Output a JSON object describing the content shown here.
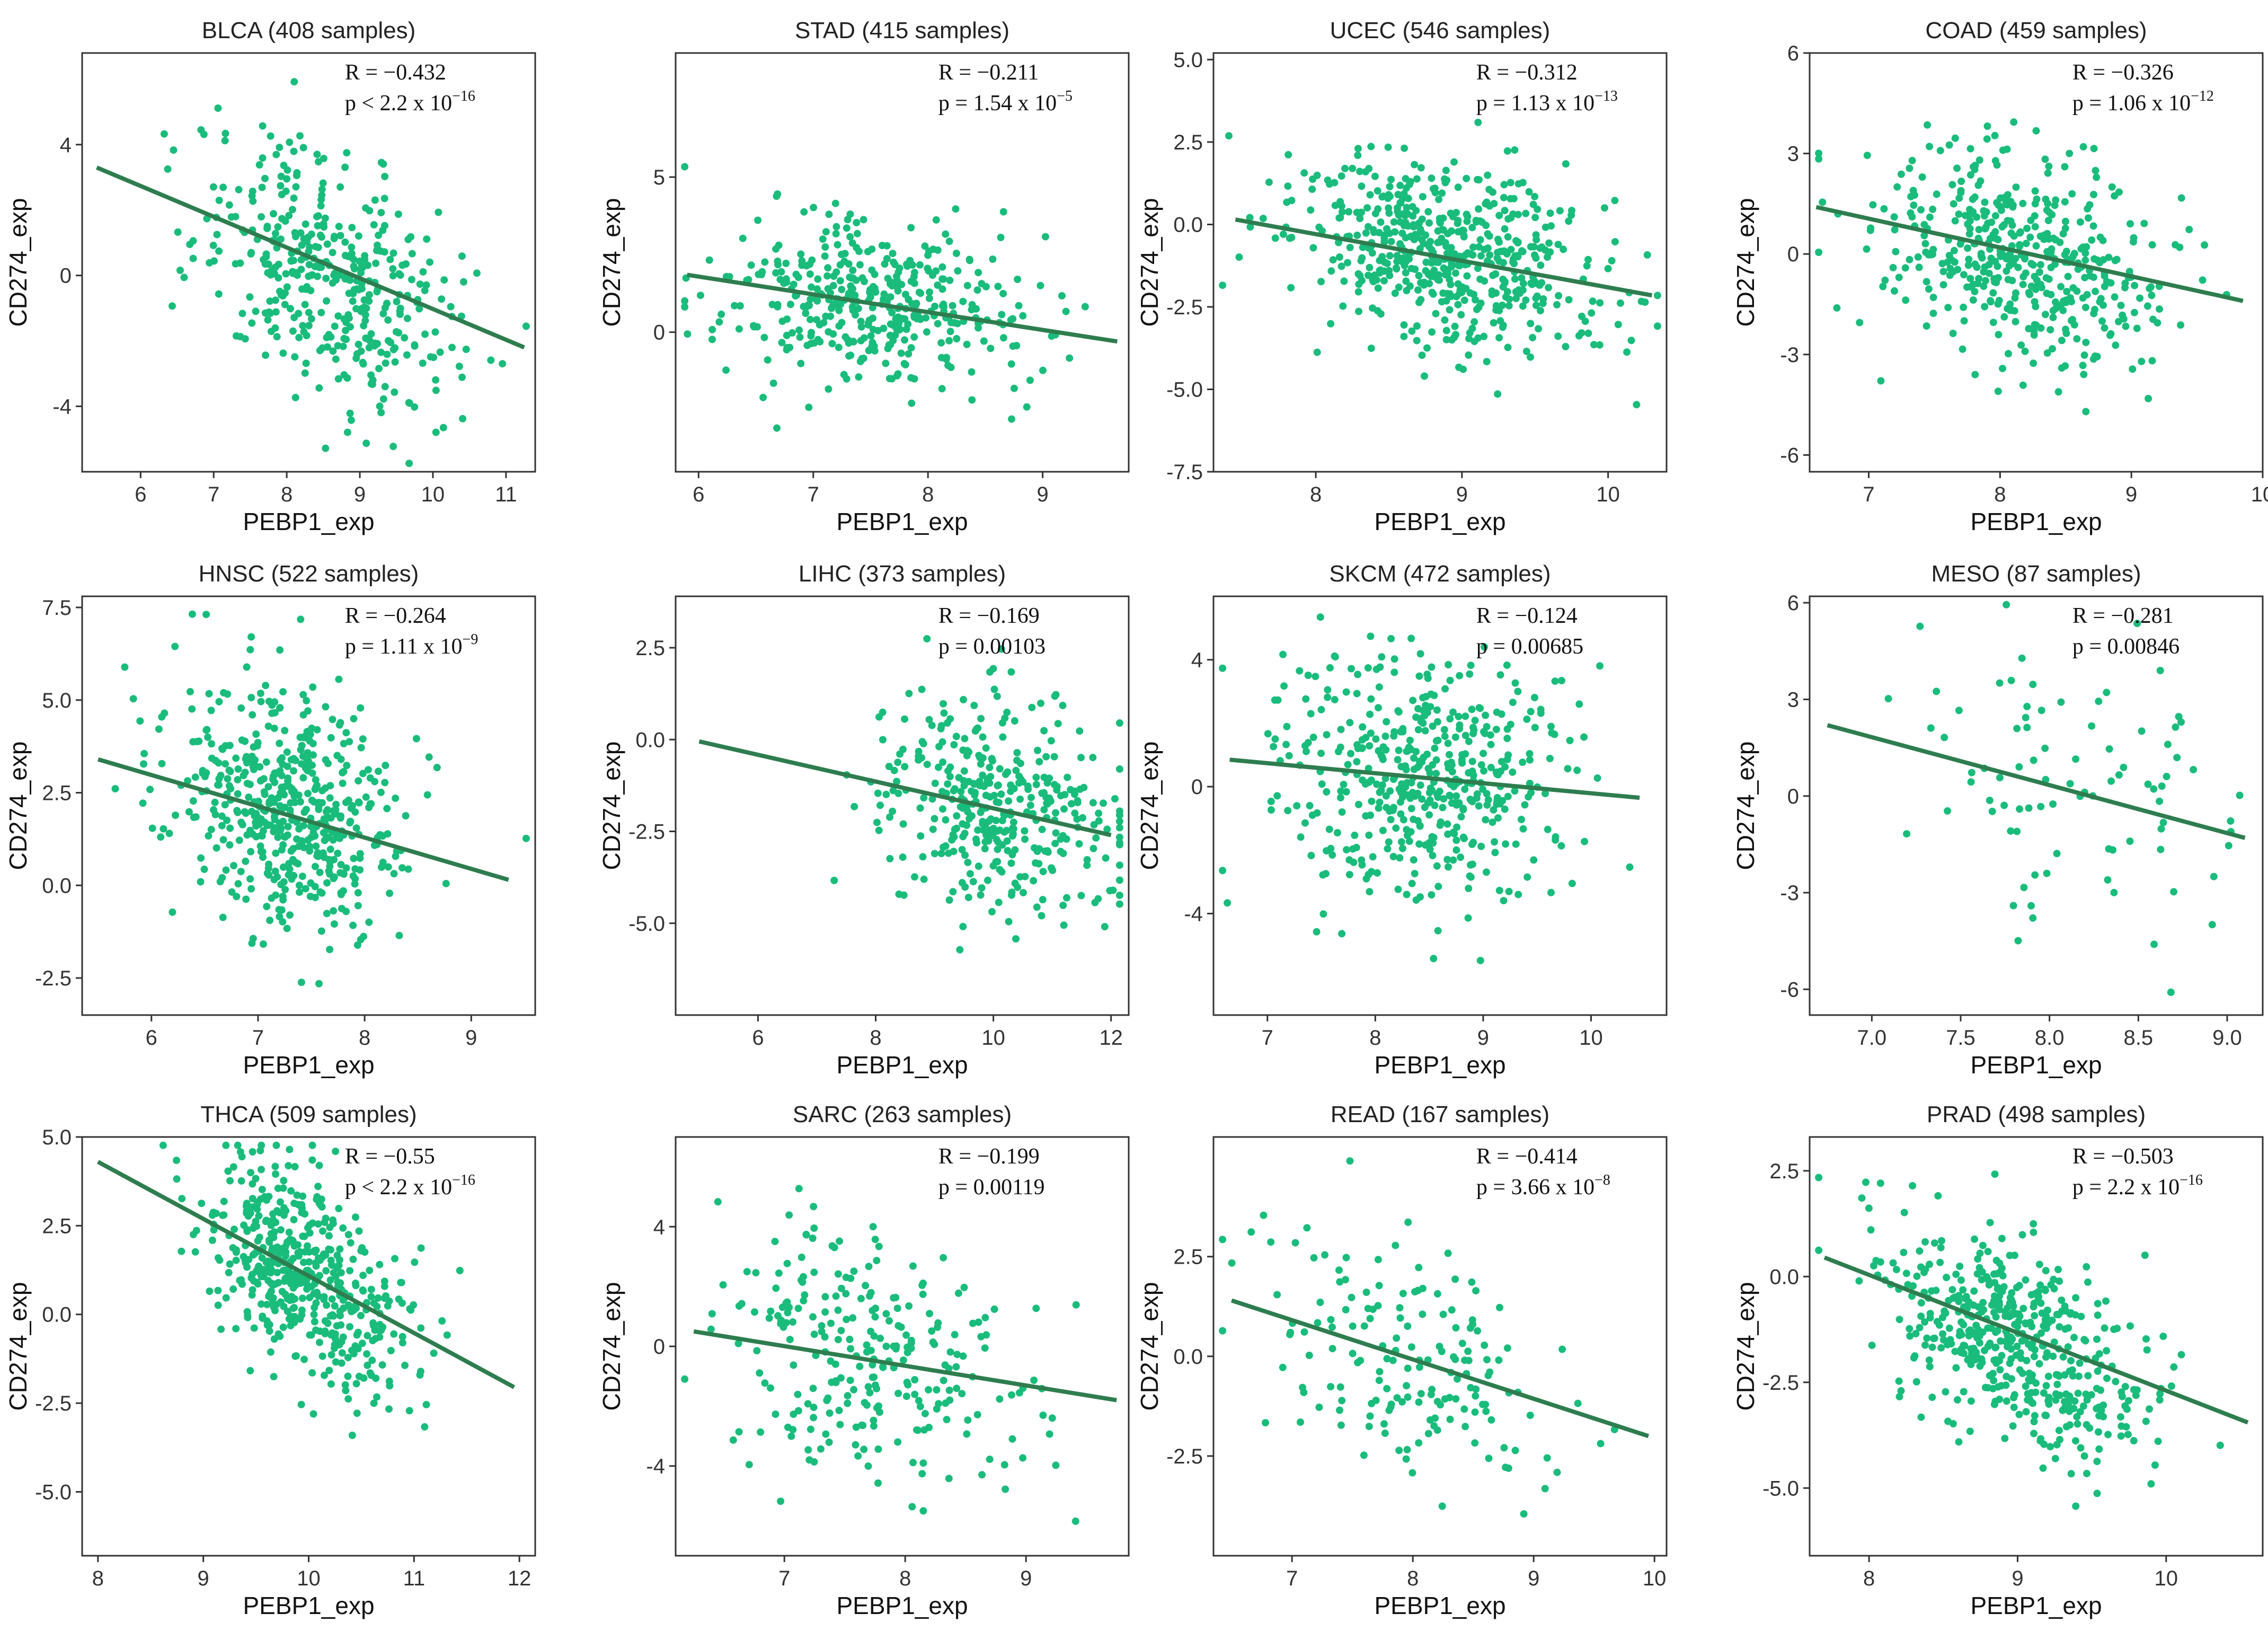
{
  "figure": {
    "x_axis_label": "PEBP1_exp",
    "y_axis_label": "CD274_exp"
  },
  "colors": {
    "points": "#1abc7c",
    "fit_line": "#2e7d4f",
    "frame": "#333333"
  },
  "chart_data": [
    {
      "type": "scatter",
      "title": "BLCA (408 samples)",
      "cancer": "BLCA",
      "n_samples": 408,
      "xlabel": "PEBP1_exp",
      "ylabel": "CD274_exp",
      "xlim": [
        5.2,
        11.4
      ],
      "ylim": [
        -6.0,
        6.8
      ],
      "xticks": [
        6,
        7,
        8,
        9,
        10,
        11
      ],
      "yticks": [
        -4,
        0,
        4
      ],
      "r_label": "R = −0.432",
      "p_label": "p < 2.2 x 10",
      "p_exp": "−16",
      "fit": {
        "x": [
          5.4,
          11.25
        ],
        "y": [
          3.3,
          -2.2
        ]
      },
      "cloud": {
        "mx": 8.6,
        "sx": 0.9,
        "my": 0.0,
        "sy": 2.0,
        "rho": -0.43,
        "n": 408
      }
    },
    {
      "type": "scatter",
      "title": "STAD (415 samples)",
      "cancer": "STAD",
      "n_samples": 415,
      "xlabel": "PEBP1_exp",
      "ylabel": "CD274_exp",
      "xlim": [
        5.8,
        9.75
      ],
      "ylim": [
        -4.5,
        9.0
      ],
      "xticks": [
        6,
        7,
        8,
        9
      ],
      "yticks": [
        0,
        5
      ],
      "r_label": "R = −0.211",
      "p_label": "p = 1.54 x 10",
      "p_exp": "−5",
      "fit": {
        "x": [
          5.9,
          9.65
        ],
        "y": [
          1.85,
          -0.3
        ]
      },
      "cloud": {
        "mx": 7.5,
        "sx": 0.65,
        "my": 0.9,
        "sy": 1.4,
        "rho": -0.21,
        "n": 415
      }
    },
    {
      "type": "scatter",
      "title": "UCEC (546 samples)",
      "cancer": "UCEC",
      "n_samples": 546,
      "xlabel": "PEBP1_exp",
      "ylabel": "CD274_exp",
      "xlim": [
        7.3,
        10.4
      ],
      "ylim": [
        -7.5,
        5.2
      ],
      "xticks": [
        8,
        9,
        10
      ],
      "yticks": [
        -7.5,
        -5.0,
        -2.5,
        0.0,
        2.5,
        5.0
      ],
      "r_label": "R = −0.312",
      "p_label": "p = 1.13 x 10",
      "p_exp": "−13",
      "fit": {
        "x": [
          7.45,
          10.3
        ],
        "y": [
          0.15,
          -2.15
        ]
      },
      "cloud": {
        "mx": 8.9,
        "sx": 0.55,
        "my": -1.0,
        "sy": 1.5,
        "rho": -0.31,
        "n": 546
      }
    },
    {
      "type": "scatter",
      "title": "COAD (459 samples)",
      "cancer": "COAD",
      "n_samples": 459,
      "xlabel": "PEBP1_exp",
      "ylabel": "CD274_exp",
      "xlim": [
        6.55,
        10.0
      ],
      "ylim": [
        -6.5,
        6.0
      ],
      "xticks": [
        7,
        8,
        9,
        10
      ],
      "yticks": [
        -6,
        -3,
        0,
        3,
        6
      ],
      "r_label": "R = −0.326",
      "p_label": "p = 1.06 x 10",
      "p_exp": "−12",
      "fit": {
        "x": [
          6.6,
          9.85
        ],
        "y": [
          1.4,
          -1.4
        ]
      },
      "cloud": {
        "mx": 8.2,
        "sx": 0.55,
        "my": 0.0,
        "sy": 1.6,
        "rho": -0.33,
        "n": 459
      }
    },
    {
      "type": "scatter",
      "title": "HNSC (522 samples)",
      "cancer": "HNSC",
      "n_samples": 522,
      "xlabel": "PEBP1_exp",
      "ylabel": "CD274_exp",
      "xlim": [
        5.35,
        9.6
      ],
      "ylim": [
        -3.5,
        7.8
      ],
      "xticks": [
        6,
        7,
        8,
        9
      ],
      "yticks": [
        -2.5,
        0.0,
        2.5,
        5.0,
        7.5
      ],
      "r_label": "R = −0.264",
      "p_label": "p = 1.11 x 10",
      "p_exp": "−9",
      "fit": {
        "x": [
          5.5,
          9.35
        ],
        "y": [
          3.4,
          0.15
        ]
      },
      "cloud": {
        "mx": 7.3,
        "sx": 0.55,
        "my": 2.0,
        "sy": 1.6,
        "rho": -0.26,
        "n": 522
      }
    },
    {
      "type": "scatter",
      "title": "LIHC (373 samples)",
      "cancer": "LIHC",
      "n_samples": 373,
      "xlabel": "PEBP1_exp",
      "ylabel": "CD274_exp",
      "xlim": [
        4.6,
        12.3
      ],
      "ylim": [
        -7.5,
        3.9
      ],
      "xticks": [
        6,
        8,
        10,
        12
      ],
      "yticks": [
        -5.0,
        -2.5,
        0.0,
        2.5
      ],
      "r_label": "R = −0.169",
      "p_label": "p = 0.00103",
      "p_exp": "",
      "fit": {
        "x": [
          5.0,
          12.0
        ],
        "y": [
          -0.05,
          -2.6
        ]
      },
      "cloud": {
        "mx": 10.0,
        "sx": 1.0,
        "my": -1.8,
        "sy": 1.5,
        "rho": -0.17,
        "n": 373
      }
    },
    {
      "type": "scatter",
      "title": "SKCM (472 samples)",
      "cancer": "SKCM",
      "n_samples": 472,
      "xlabel": "PEBP1_exp",
      "ylabel": "CD274_exp",
      "xlim": [
        6.5,
        10.7
      ],
      "ylim": [
        -7.2,
        6.0
      ],
      "xticks": [
        7,
        8,
        9,
        10
      ],
      "yticks": [
        -4,
        0,
        4
      ],
      "r_label": "R = −0.124",
      "p_label": "p = 0.00685",
      "p_exp": "",
      "fit": {
        "x": [
          6.65,
          10.45
        ],
        "y": [
          0.85,
          -0.35
        ]
      },
      "cloud": {
        "mx": 8.4,
        "sx": 0.7,
        "my": 0.3,
        "sy": 2.0,
        "rho": -0.12,
        "n": 472
      }
    },
    {
      "type": "scatter",
      "title": "MESO (87 samples)",
      "cancer": "MESO",
      "n_samples": 87,
      "xlabel": "PEBP1_exp",
      "ylabel": "CD274_exp",
      "xlim": [
        6.65,
        9.2
      ],
      "ylim": [
        -6.8,
        6.2
      ],
      "xticks": [
        7.0,
        7.5,
        8.0,
        8.5,
        9.0
      ],
      "yticks": [
        -6,
        -3,
        0,
        3,
        6
      ],
      "r_label": "R = −0.281",
      "p_label": "p = 0.00846",
      "p_exp": "",
      "fit": {
        "x": [
          6.75,
          9.1
        ],
        "y": [
          2.2,
          -1.3
        ]
      },
      "cloud": {
        "mx": 8.1,
        "sx": 0.5,
        "my": 0.3,
        "sy": 2.2,
        "rho": -0.28,
        "n": 87
      }
    },
    {
      "type": "scatter",
      "title": "THCA (509 samples)",
      "cancer": "THCA",
      "n_samples": 509,
      "xlabel": "PEBP1_exp",
      "ylabel": "CD274_exp",
      "xlim": [
        7.85,
        12.15
      ],
      "ylim": [
        -6.8,
        5.0
      ],
      "xticks": [
        8,
        9,
        10,
        11,
        12
      ],
      "yticks": [
        -5.0,
        -2.5,
        0.0,
        2.5,
        5.0
      ],
      "r_label": "R = −0.55",
      "p_label": "p < 2.2 x 10",
      "p_exp": "−16",
      "fit": {
        "x": [
          8.0,
          11.95
        ],
        "y": [
          4.3,
          -2.05
        ]
      },
      "cloud": {
        "mx": 10.0,
        "sx": 0.5,
        "my": 1.0,
        "sy": 1.6,
        "rho": -0.55,
        "n": 509
      }
    },
    {
      "type": "scatter",
      "title": "SARC (263 samples)",
      "cancer": "SARC",
      "n_samples": 263,
      "xlabel": "PEBP1_exp",
      "ylabel": "CD274_exp",
      "xlim": [
        6.1,
        9.85
      ],
      "ylim": [
        -7.0,
        7.0
      ],
      "xticks": [
        7,
        8,
        9
      ],
      "yticks": [
        -4,
        0,
        4
      ],
      "r_label": "R = −0.199",
      "p_label": "p = 0.00119",
      "p_exp": "",
      "fit": {
        "x": [
          6.25,
          9.75
        ],
        "y": [
          0.5,
          -1.8
        ]
      },
      "cloud": {
        "mx": 7.8,
        "sx": 0.7,
        "my": -0.4,
        "sy": 2.2,
        "rho": -0.2,
        "n": 263
      }
    },
    {
      "type": "scatter",
      "title": "READ (167 samples)",
      "cancer": "READ",
      "n_samples": 167,
      "xlabel": "PEBP1_exp",
      "ylabel": "CD274_exp",
      "xlim": [
        6.35,
        10.1
      ],
      "ylim": [
        -5.0,
        5.5
      ],
      "xticks": [
        7,
        8,
        9,
        10
      ],
      "yticks": [
        -2.5,
        0.0,
        2.5
      ],
      "r_label": "R = −0.414",
      "p_label": "p = 3.66 x 10",
      "p_exp": "−8",
      "fit": {
        "x": [
          6.5,
          9.95
        ],
        "y": [
          1.4,
          -2.0
        ]
      },
      "cloud": {
        "mx": 8.0,
        "sx": 0.6,
        "my": -0.1,
        "sy": 1.5,
        "rho": -0.41,
        "n": 167
      }
    },
    {
      "type": "scatter",
      "title": "PRAD (498 samples)",
      "cancer": "PRAD",
      "n_samples": 498,
      "xlabel": "PEBP1_exp",
      "ylabel": "CD274_exp",
      "xlim": [
        7.6,
        10.65
      ],
      "ylim": [
        -6.6,
        3.3
      ],
      "xticks": [
        8,
        9,
        10
      ],
      "yticks": [
        -5.0,
        -2.5,
        0.0,
        2.5
      ],
      "r_label": "R = −0.503",
      "p_label": "p = 2.2 x 10",
      "p_exp": "−16",
      "fit": {
        "x": [
          7.7,
          10.55
        ],
        "y": [
          0.45,
          -3.45
        ]
      },
      "cloud": {
        "mx": 9.0,
        "sx": 0.45,
        "my": -1.5,
        "sy": 1.4,
        "rho": -0.5,
        "n": 498
      }
    }
  ]
}
